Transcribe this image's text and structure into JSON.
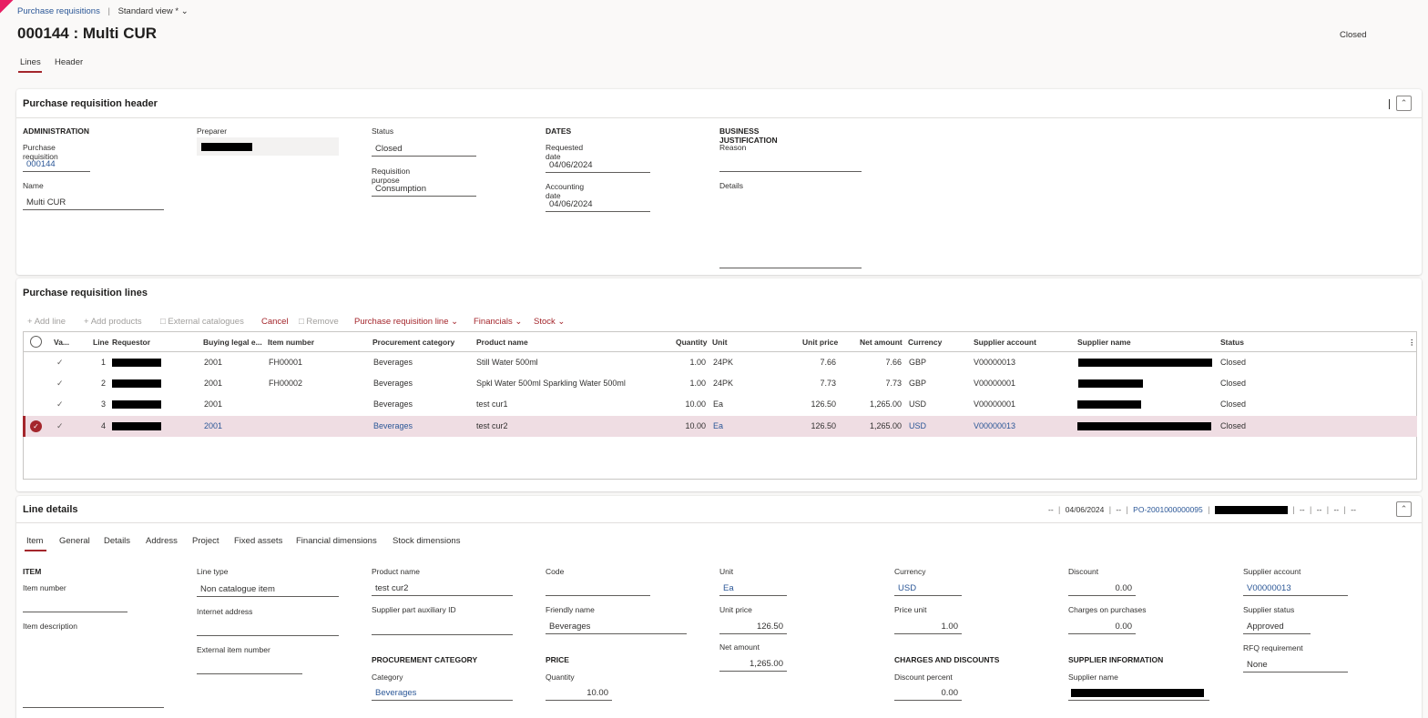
{
  "breadcrumb": {
    "link": "Purchase requisitions",
    "separator": "|",
    "view": "Standard view *"
  },
  "page": {
    "title": "000144 : Multi CUR",
    "status": "Closed"
  },
  "top_tabs": [
    "Lines",
    "Header"
  ],
  "header_card": {
    "title": "Purchase requisition header",
    "administration": {
      "section": "ADMINISTRATION",
      "pr_label": "Purchase requisition",
      "pr_value": "000144",
      "name_label": "Name",
      "name_value": "Multi CUR"
    },
    "preparer_label": "Preparer",
    "status_label": "Status",
    "status_value": "Closed",
    "purpose_label": "Requisition purpose",
    "purpose_value": "Consumption",
    "dates": {
      "section": "DATES",
      "requested_label": "Requested date",
      "requested_value": "04/06/2024",
      "accounting_label": "Accounting date",
      "accounting_value": "04/06/2024"
    },
    "justification": {
      "section": "BUSINESS JUSTIFICATION",
      "reason_label": "Reason",
      "details_label": "Details"
    }
  },
  "lines_card": {
    "title": "Purchase requisition lines",
    "toolbar": {
      "add_line": "Add line",
      "add_products": "Add products",
      "external_catalogues": "External catalogues",
      "cancel": "Cancel",
      "remove": "Remove",
      "pr_line": "Purchase requisition line",
      "financials": "Financials",
      "stock": "Stock"
    },
    "columns": [
      "Va...",
      "Line",
      "Requestor",
      "Buying legal e...",
      "Item number",
      "Procurement category",
      "Product name",
      "Quantity",
      "Unit",
      "Unit price",
      "Net amount",
      "Currency",
      "Supplier account",
      "Supplier name",
      "Status"
    ],
    "rows": [
      {
        "line": "1",
        "legal": "2001",
        "item": "FH00001",
        "category": "Beverages",
        "product": "Still Water 500ml",
        "qty": "1.00",
        "unit": "24PK",
        "price": "7.66",
        "net": "7.66",
        "currency": "GBP",
        "supplier": "V00000013",
        "status": "Closed",
        "selected": false
      },
      {
        "line": "2",
        "legal": "2001",
        "item": "FH00002",
        "category": "Beverages",
        "product": "Spkl Water 500ml Sparkling Water 500ml",
        "qty": "1.00",
        "unit": "24PK",
        "price": "7.73",
        "net": "7.73",
        "currency": "GBP",
        "supplier": "V00000001",
        "status": "Closed",
        "selected": false
      },
      {
        "line": "3",
        "legal": "2001",
        "item": "",
        "category": "Beverages",
        "product": "test cur1",
        "qty": "10.00",
        "unit": "Ea",
        "price": "126.50",
        "net": "1,265.00",
        "currency": "USD",
        "supplier": "V00000001",
        "status": "Closed",
        "selected": false
      },
      {
        "line": "4",
        "legal": "2001",
        "item": "",
        "category": "Beverages",
        "product": "test cur2",
        "qty": "10.00",
        "unit": "Ea",
        "price": "126.50",
        "net": "1,265.00",
        "currency": "USD",
        "supplier": "V00000013",
        "status": "Closed",
        "selected": true
      }
    ]
  },
  "details_card": {
    "title": "Line details",
    "summary": {
      "dash1": "--",
      "date": "04/06/2024",
      "dash2": "--",
      "po": "PO-2001000000095",
      "dash3": "--",
      "dash4": "--",
      "dash5": "--",
      "dash6": "--"
    },
    "tabs": [
      "Item",
      "General",
      "Details",
      "Address",
      "Project",
      "Fixed assets",
      "Financial dimensions",
      "Stock dimensions"
    ],
    "item_section": "ITEM",
    "item_number_label": "Item number",
    "item_description_label": "Item description",
    "line_type_label": "Line type",
    "line_type_value": "Non catalogue item",
    "internet_label": "Internet address",
    "external_item_label": "External item number",
    "product_name_label": "Product name",
    "product_name_value": "test cur2",
    "supplier_aux_label": "Supplier part auxiliary ID",
    "proc_cat_section": "PROCUREMENT CATEGORY",
    "category_label": "Category",
    "category_value": "Beverages",
    "code_label": "Code",
    "friendly_label": "Friendly name",
    "friendly_value": "Beverages",
    "price_section": "PRICE",
    "quantity_label": "Quantity",
    "quantity_value": "10.00",
    "unit_label": "Unit",
    "unit_value": "Ea",
    "unit_price_label": "Unit price",
    "unit_price_value": "126.50",
    "net_label": "Net amount",
    "net_value": "1,265.00",
    "currency_label": "Currency",
    "currency_value": "USD",
    "price_unit_label": "Price unit",
    "price_unit_value": "1.00",
    "charges_section": "CHARGES AND DISCOUNTS",
    "discount_pct_label": "Discount percent",
    "discount_pct_value": "0.00",
    "discount_label": "Discount",
    "discount_value": "0.00",
    "charges_label": "Charges on purchases",
    "charges_value": "0.00",
    "supplier_section": "SUPPLIER INFORMATION",
    "supplier_name_label": "Supplier name",
    "supplier_account_label": "Supplier account",
    "supplier_account_value": "V00000013",
    "supplier_status_label": "Supplier status",
    "supplier_status_value": "Approved",
    "rfq_label": "RFQ requirement",
    "rfq_value": "None"
  },
  "colors": {
    "accent": "#a4262c",
    "link": "#2b5797",
    "selected_row": "#efdde3",
    "selected_mark": "#a4262c"
  }
}
